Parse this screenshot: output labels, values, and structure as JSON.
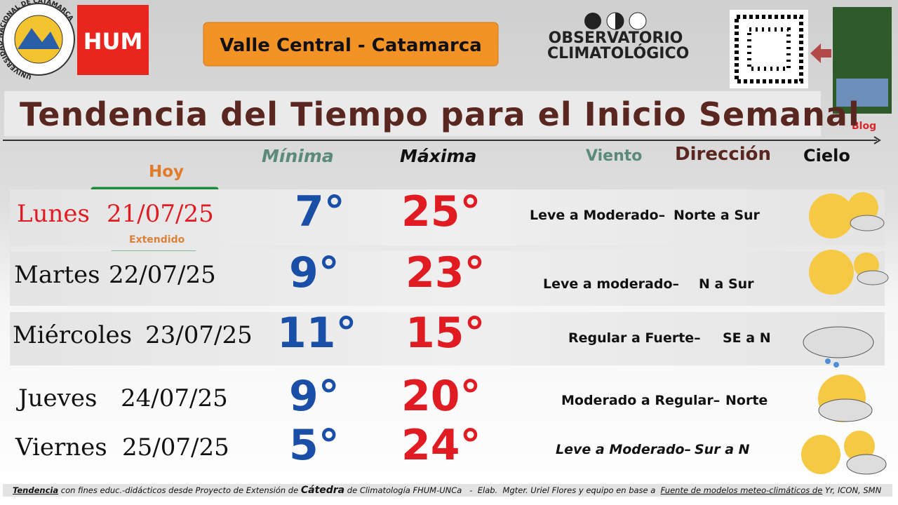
{
  "header": {
    "university": "UNIVERSIDAD NACIONAL DE CATAMARCA",
    "faculty": "HUM",
    "region": "Valle Central - Catamarca",
    "observatory": [
      "OBSERVATORIO",
      "CLIMATOLÓGICO"
    ],
    "blog": "Blog"
  },
  "title": "Tendencia del Tiempo para el Inicio Semanal",
  "columns": {
    "min": "Mínima",
    "max": "Máxima",
    "wind": "Viento",
    "direction": "Dirección",
    "sky": "Cielo"
  },
  "tags": {
    "today": "Hoy",
    "extended": "Extendido"
  },
  "rows": [
    {
      "day": "Lunes",
      "date": "21/07/25",
      "min": "7°",
      "max": "25°",
      "wind": "Leve a Moderado–",
      "direction": "Norte a Sur"
    },
    {
      "day": "Martes",
      "date": "22/07/25",
      "min": "9°",
      "max": "23°",
      "wind": "Leve a moderado–",
      "direction": "N a Sur"
    },
    {
      "day": "Miércoles",
      "date": "23/07/25",
      "min": "11°",
      "max": "15°",
      "wind": "Regular a Fuerte–",
      "direction": "SE a N"
    },
    {
      "day": "Jueves",
      "date": "24/07/25",
      "min": "9°",
      "max": "20°",
      "wind": "Moderado a Regular–",
      "direction": "Norte"
    },
    {
      "day": "Viernes",
      "date": "25/07/25",
      "min": "5°",
      "max": "24°",
      "wind": "Leve a Moderado–",
      "direction": "Sur a N"
    }
  ],
  "footer": {
    "parts": [
      "Tendencia",
      " con fines educ.-didácticos desde Proyecto de Extensión de ",
      "Cátedra",
      " de Climatología FHUM-UNCa   -  Elab.  Mgter. Uriel Flores y equipo en base a  ",
      "Fuente de modelos meteo-climáticos de",
      " Yr, ICON, SMN"
    ]
  }
}
